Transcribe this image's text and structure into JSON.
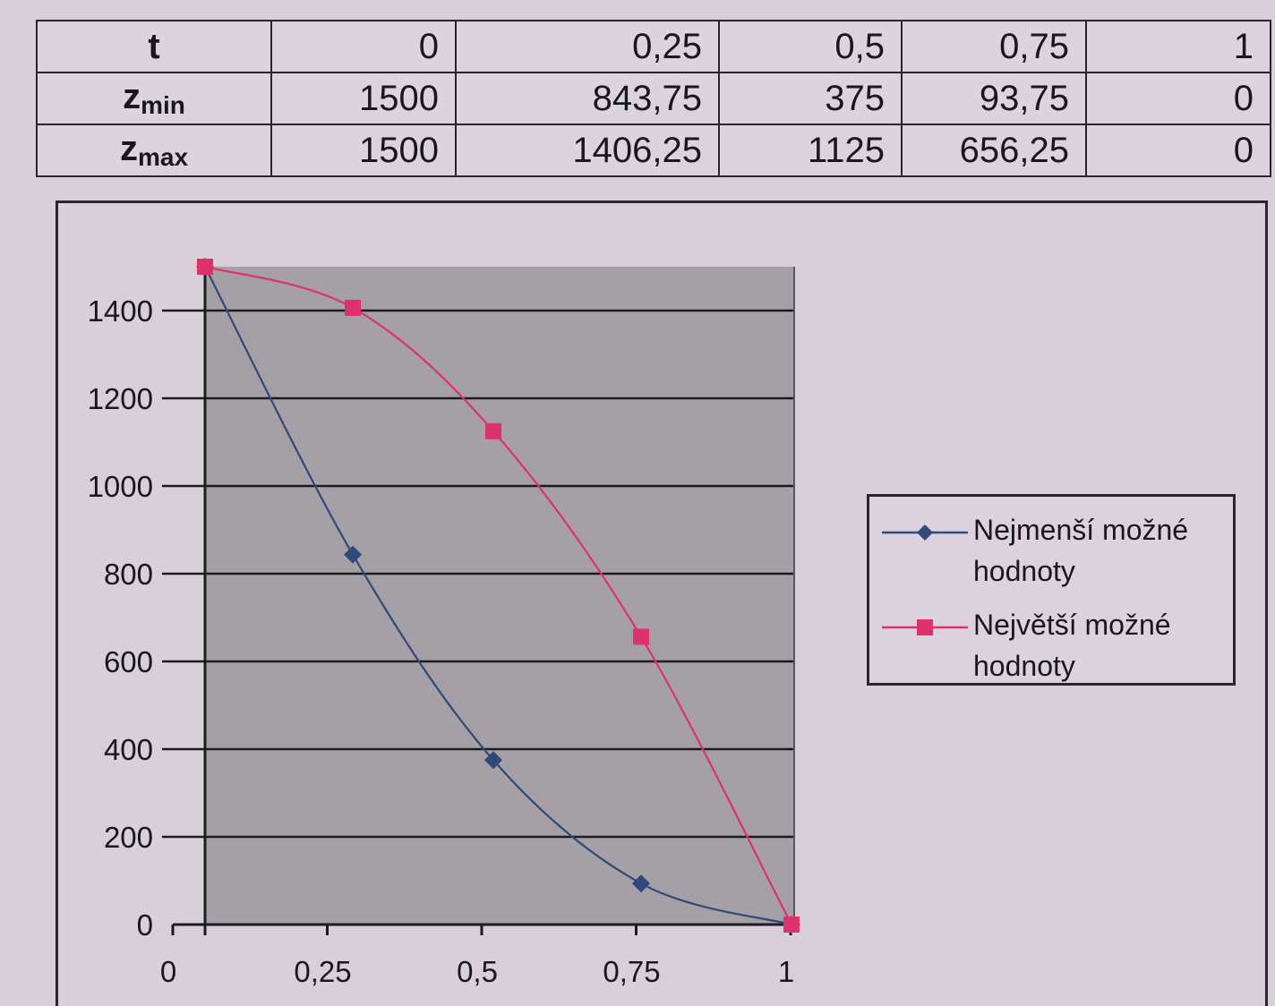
{
  "table": {
    "row_headers": {
      "t": "t",
      "zmin_base": "z",
      "zmin_sub": "min",
      "zmax_base": "z",
      "zmax_sub": "max"
    },
    "t_values": [
      "0",
      "0,25",
      "0,5",
      "0,75",
      "1"
    ],
    "zmin_values": [
      "1500",
      "843,75",
      "375",
      "93,75",
      "0"
    ],
    "zmax_values": [
      "1500",
      "1406,25",
      "1125",
      "656,25",
      "0"
    ]
  },
  "chart_data": {
    "type": "line",
    "title": "",
    "xlabel": "",
    "ylabel": "",
    "x": [
      0,
      0.25,
      0.5,
      0.75,
      1
    ],
    "xlim": [
      0,
      1
    ],
    "ylim": [
      0,
      1500
    ],
    "x_tick_labels": [
      "0",
      "0,25",
      "0,5",
      "0,75",
      "1"
    ],
    "y_ticks": [
      0,
      200,
      400,
      600,
      800,
      1000,
      1200,
      1400
    ],
    "grid": "horizontal",
    "legend_position": "right",
    "series": [
      {
        "name": "Nejmenší možné hodnoty",
        "values": [
          1500,
          843.75,
          375,
          93.75,
          0
        ],
        "color": "#2f4a7a",
        "marker": "diamond"
      },
      {
        "name": "Největší možné hodnoty",
        "values": [
          1500,
          1406.25,
          1125,
          656.25,
          0
        ],
        "color": "#e0326a",
        "marker": "square"
      }
    ],
    "plot_background": "#a4a0a6"
  }
}
